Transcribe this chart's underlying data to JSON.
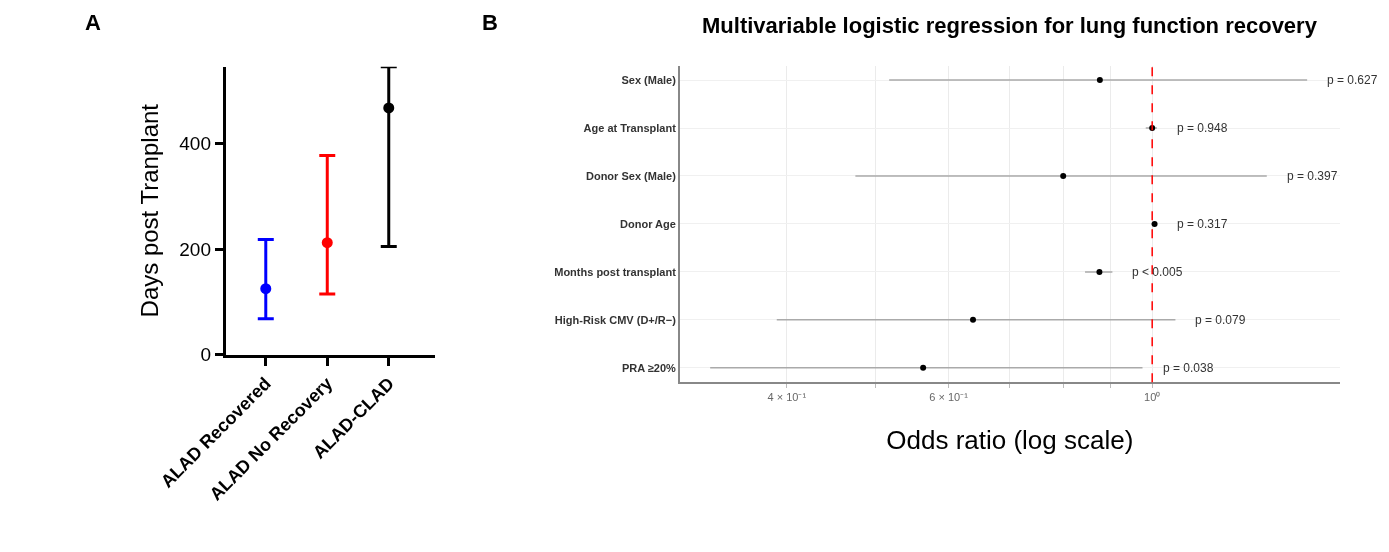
{
  "chart_data": [
    {
      "type": "scatter",
      "ylabel": "Days post Tranplant",
      "annotations": [
        "A"
      ],
      "categories": [
        "ALAD Recovered",
        "ALAD No Recovery",
        "ALAD-CLAD"
      ],
      "values": [
        125,
        212,
        467
      ],
      "colors": [
        "#0000ff",
        "#ff0000",
        "#000000"
      ],
      "errors": [
        [
          68,
          218
        ],
        [
          115,
          377
        ],
        [
          205,
          545
        ]
      ],
      "ylim": [
        0,
        545
      ],
      "yticks": [
        0,
        200,
        400
      ],
      "grid": false,
      "marker": "circle"
    },
    {
      "type": "scatter",
      "orientation": "horizontal",
      "title": "Multivariable logistic regression for lung function recovery",
      "xlabel": "Odds ratio (log scale)",
      "categories": [
        "Sex (Male)",
        "Age at Transplant",
        "Donor Sex (Male)",
        "Donor Age",
        "Months post transplant",
        "High-Risk CMV (D+/R−)",
        "PRA ≥20%"
      ],
      "values": [
        0.877,
        1.0,
        0.8,
        1.006,
        0.876,
        0.638,
        0.563
      ],
      "color": "#000000",
      "errors": [
        [
          0.517,
          1.475
        ],
        [
          0.984,
          1.012
        ],
        [
          0.475,
          1.333
        ],
        [
          0.998,
          1.012
        ],
        [
          0.845,
          0.905
        ],
        [
          0.39,
          1.06
        ],
        [
          0.33,
          0.976
        ]
      ],
      "log": "x",
      "xlim": [
        0.306,
        1.6
      ],
      "xticks": [
        {
          "value": 0.4,
          "label": "4 × 10⁻¹"
        },
        {
          "value": 0.5,
          "label": null
        },
        {
          "value": 0.6,
          "label": "6 × 10⁻¹"
        },
        {
          "value": 0.7,
          "label": null
        },
        {
          "value": 0.8,
          "label": null
        },
        {
          "value": 0.9,
          "label": null
        },
        {
          "value": 1,
          "label": "10⁰"
        }
      ],
      "grid": true,
      "marker": "circle",
      "ref_lines": [
        {
          "axis": "x",
          "value": 1,
          "color": "#ff0000",
          "line_style": "dashed"
        }
      ],
      "annotations": [
        "B",
        {
          "text": "p = 0.627",
          "x": 1.475,
          "y": "Sex (Male)"
        },
        {
          "text": "p = 0.948",
          "x": 1.012,
          "y": "Age at Transplant"
        },
        {
          "text": "p = 0.397",
          "x": 1.333,
          "y": "Donor Sex (Male)"
        },
        {
          "text": "p = 0.317",
          "x": 1.012,
          "y": "Donor Age"
        },
        {
          "text": "p < 0.005",
          "x": 0.905,
          "y": "Months post transplant"
        },
        {
          "text": "p = 0.079",
          "x": 1.06,
          "y": "High-Risk CMV (D+/R−)"
        },
        {
          "text": "p = 0.038",
          "x": 0.976,
          "y": "PRA ≥20%"
        }
      ]
    }
  ]
}
